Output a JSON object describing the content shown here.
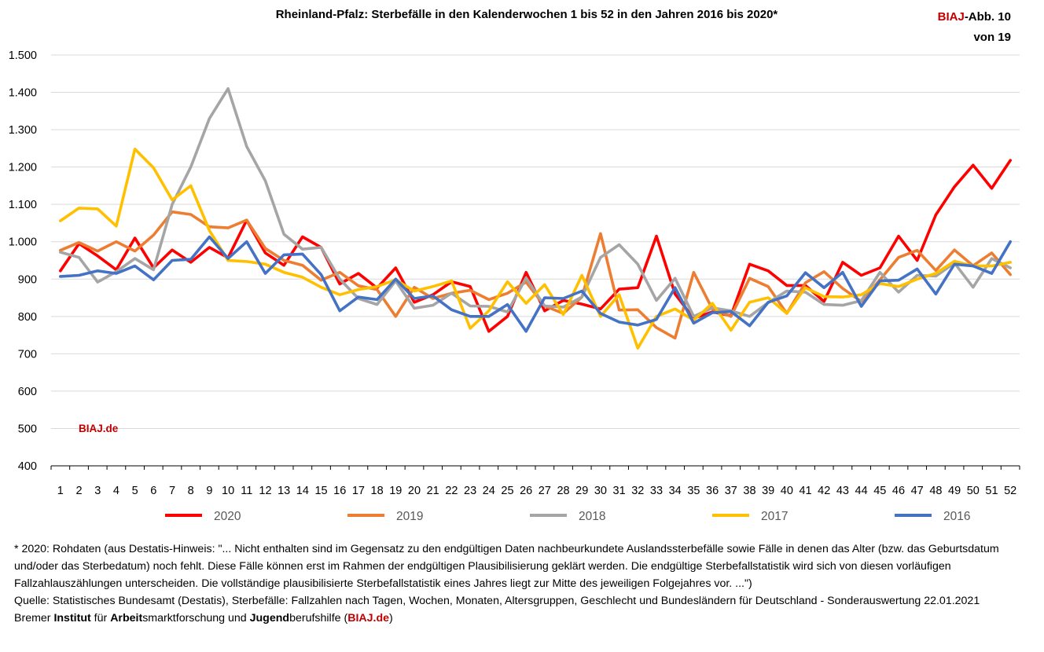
{
  "badge": {
    "brand": "BIAJ",
    "label": "-Abb. 10",
    "line2": "von 19"
  },
  "watermark": "BIAJ.de",
  "chart_data": {
    "type": "line",
    "title": "Rheinland-Pfalz: Sterbefälle in den Kalenderwochen 1 bis 52 in den Jahren 2016 bis 2020*",
    "x": [
      1,
      2,
      3,
      4,
      5,
      6,
      7,
      8,
      9,
      10,
      11,
      12,
      13,
      14,
      15,
      16,
      17,
      18,
      19,
      20,
      21,
      22,
      23,
      24,
      25,
      26,
      27,
      28,
      29,
      30,
      31,
      32,
      33,
      34,
      35,
      36,
      37,
      38,
      39,
      40,
      41,
      42,
      43,
      44,
      45,
      46,
      47,
      48,
      49,
      50,
      51,
      52
    ],
    "ylim": [
      400,
      1500
    ],
    "yticks": [
      400,
      500,
      600,
      700,
      800,
      900,
      1000,
      1100,
      1200,
      1300,
      1400,
      1500
    ],
    "ytick_labels": [
      "400",
      "500",
      "600",
      "700",
      "800",
      "900",
      "1.000",
      "1.100",
      "1.200",
      "1.300",
      "1.400",
      "1.500"
    ],
    "grid": "horizontal",
    "legend_position": "bottom",
    "series": [
      {
        "name": "2020",
        "color": "#ff0000",
        "values": [
          922,
          995,
          962,
          925,
          1010,
          930,
          978,
          945,
          985,
          957,
          1058,
          970,
          937,
          1013,
          985,
          887,
          915,
          876,
          930,
          838,
          858,
          893,
          880,
          760,
          800,
          918,
          815,
          843,
          833,
          820,
          873,
          877,
          1015,
          860,
          795,
          812,
          802,
          940,
          922,
          883,
          883,
          840,
          945,
          910,
          930,
          1015,
          950,
          1072,
          1147,
          1205,
          1143,
          1218
        ]
      },
      {
        "name": "2019",
        "color": "#ed7d31",
        "values": [
          977,
          998,
          975,
          1000,
          975,
          1018,
          1080,
          1073,
          1040,
          1037,
          1058,
          982,
          950,
          937,
          897,
          918,
          882,
          872,
          800,
          878,
          848,
          862,
          870,
          845,
          862,
          892,
          828,
          808,
          852,
          1022,
          817,
          818,
          770,
          742,
          918,
          820,
          800,
          902,
          880,
          808,
          890,
          920,
          875,
          840,
          898,
          958,
          977,
          923,
          978,
          936,
          970,
          912
        ]
      },
      {
        "name": "2018",
        "color": "#a5a5a5",
        "values": [
          972,
          958,
          892,
          920,
          955,
          925,
          1100,
          1200,
          1330,
          1410,
          1255,
          1163,
          1020,
          980,
          985,
          900,
          848,
          832,
          895,
          822,
          830,
          862,
          828,
          827,
          812,
          903,
          828,
          825,
          852,
          958,
          992,
          940,
          843,
          902,
          800,
          823,
          815,
          800,
          837,
          868,
          865,
          832,
          830,
          842,
          918,
          865,
          910,
          908,
          943,
          878,
          955,
          930
        ]
      },
      {
        "name": "2017",
        "color": "#ffc000",
        "values": [
          1056,
          1090,
          1088,
          1042,
          1248,
          1198,
          1112,
          1150,
          1030,
          950,
          947,
          940,
          918,
          905,
          878,
          858,
          872,
          880,
          898,
          868,
          880,
          895,
          768,
          815,
          893,
          835,
          885,
          805,
          910,
          800,
          858,
          715,
          800,
          820,
          790,
          835,
          763,
          838,
          850,
          808,
          877,
          853,
          852,
          858,
          888,
          880,
          900,
          915,
          948,
          935,
          935,
          945
        ]
      },
      {
        "name": "2016",
        "color": "#4472c4",
        "values": [
          907,
          910,
          922,
          915,
          935,
          898,
          950,
          953,
          1013,
          955,
          1000,
          915,
          965,
          967,
          912,
          815,
          852,
          845,
          900,
          848,
          855,
          818,
          800,
          800,
          832,
          760,
          850,
          848,
          868,
          808,
          785,
          777,
          792,
          877,
          782,
          810,
          813,
          775,
          838,
          855,
          917,
          877,
          918,
          827,
          895,
          897,
          927,
          860,
          940,
          935,
          915,
          1000
        ]
      }
    ]
  },
  "footer": {
    "note": "* 2020: Rohdaten (aus Destatis-Hinweis: \"... Nicht enthalten sind im Gegensatz zu den endgültigen Daten nachbeurkundete Auslandssterbefälle sowie Fälle in denen das Alter (bzw. das Geburtsdatum und/oder das Sterbedatum) noch fehlt. Diese Fälle können erst im Rahmen der endgültigen Plausibilisierung geklärt werden. Die endgültige Sterbefallstatistik wird sich von diesen vorläufigen Fallzahlauszählungen unterscheiden. Die vollständige plausibilisierte Sterbefallstatistik eines Jahres liegt zur Mitte des jeweiligen Folgejahres vor. ...\")",
    "source": "Quelle: Statistisches Bundesamt (Destatis), Sterbefälle: Fallzahlen nach Tagen, Wochen, Monaten, Altersgruppen, Geschlecht und Bundesländern für Deutschland - Sonderauswertung 22.01.2021",
    "org_w1": "Bremer ",
    "org_b1": "Institut",
    "org_w2": " für ",
    "org_b2": "Arbeit",
    "org_w3": "smarktforschung und ",
    "org_b3": "Jugend",
    "org_w4": "berufshilfe (",
    "org_link": "BIAJ.de",
    "org_w5": ")"
  }
}
